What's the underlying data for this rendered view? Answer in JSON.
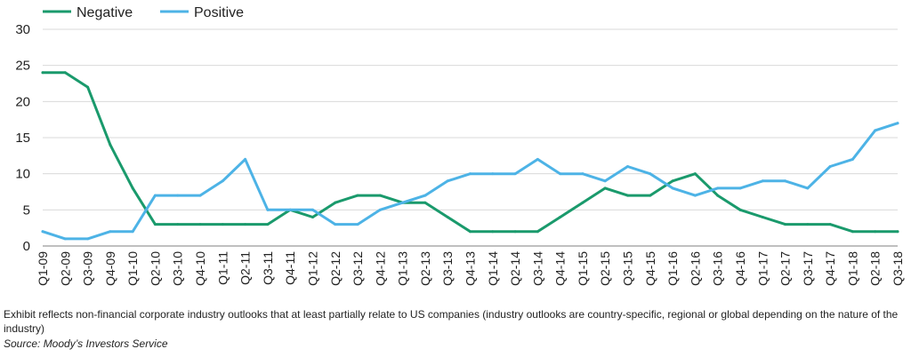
{
  "chart_data": {
    "type": "line",
    "categories": [
      "Q1-09",
      "Q2-09",
      "Q3-09",
      "Q4-09",
      "Q1-10",
      "Q2-10",
      "Q3-10",
      "Q4-10",
      "Q1-11",
      "Q2-11",
      "Q3-11",
      "Q4-11",
      "Q1-12",
      "Q2-12",
      "Q3-12",
      "Q4-12",
      "Q1-13",
      "Q2-13",
      "Q3-13",
      "Q4-13",
      "Q1-14",
      "Q2-14",
      "Q3-14",
      "Q4-14",
      "Q1-15",
      "Q2-15",
      "Q3-15",
      "Q4-15",
      "Q1-16",
      "Q2-16",
      "Q3-16",
      "Q4-16",
      "Q1-17",
      "Q2-17",
      "Q3-17",
      "Q4-17",
      "Q1-18",
      "Q2-18",
      "Q3-18"
    ],
    "series": [
      {
        "name": "Negative",
        "color": "#1a9a6c",
        "values": [
          24,
          24,
          22,
          14,
          8,
          3,
          3,
          3,
          3,
          3,
          3,
          5,
          4,
          6,
          7,
          7,
          6,
          6,
          4,
          2,
          2,
          2,
          2,
          4,
          6,
          8,
          7,
          7,
          9,
          10,
          7,
          5,
          4,
          3,
          3,
          3,
          2,
          2,
          2
        ]
      },
      {
        "name": "Positive",
        "color": "#4db3e6",
        "values": [
          2,
          1,
          1,
          2,
          2,
          7,
          7,
          7,
          9,
          12,
          5,
          5,
          5,
          3,
          3,
          5,
          6,
          7,
          9,
          10,
          10,
          10,
          12,
          10,
          10,
          9,
          11,
          10,
          8,
          7,
          8,
          8,
          9,
          9,
          8,
          11,
          12,
          16,
          17
        ]
      }
    ],
    "yticks": [
      0,
      5,
      10,
      15,
      20,
      25,
      30
    ],
    "ylim": [
      0,
      30
    ],
    "grid": true,
    "legend": "top-left"
  },
  "footnote": "Exhibit reflects non-financial corporate industry outlooks that at least partially relate to US companies (industry outlooks are country-specific, regional or global depending on the nature of the industry)",
  "source": "Source: Moody’s Investors Service"
}
